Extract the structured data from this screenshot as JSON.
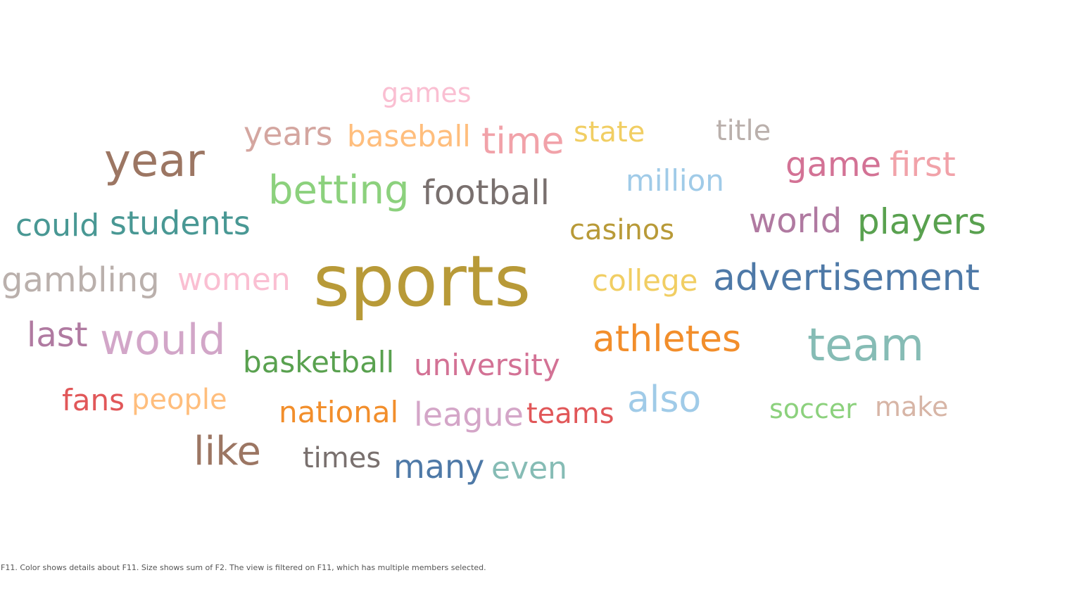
{
  "chart_data": {
    "type": "wordcloud",
    "words": [
      {
        "text": "sports",
        "color": "#b89a38"
      },
      {
        "text": "year",
        "color": "#9c7663"
      },
      {
        "text": "team",
        "color": "#86bcb5"
      },
      {
        "text": "advertisement",
        "color": "#4e79a7"
      },
      {
        "text": "would",
        "color": "#d2a6c8"
      },
      {
        "text": "betting",
        "color": "#8cd17d"
      },
      {
        "text": "athletes",
        "color": "#f28e2b"
      },
      {
        "text": "like",
        "color": "#9c7663"
      },
      {
        "text": "football",
        "color": "#79706e"
      },
      {
        "text": "players",
        "color": "#59a14f"
      },
      {
        "text": "gambling",
        "color": "#bab0ac"
      },
      {
        "text": "game",
        "color": "#d37295"
      },
      {
        "text": "first",
        "color": "#f1a2a9"
      },
      {
        "text": "world",
        "color": "#b07aa1"
      },
      {
        "text": "students",
        "color": "#499894"
      },
      {
        "text": "could",
        "color": "#499894"
      },
      {
        "text": "also",
        "color": "#a0cbe8"
      },
      {
        "text": "time",
        "color": "#f1a2a9"
      },
      {
        "text": "women",
        "color": "#fabfd2"
      },
      {
        "text": "college",
        "color": "#f1ce63"
      },
      {
        "text": "last",
        "color": "#b07aa1"
      },
      {
        "text": "years",
        "color": "#d4a6a0"
      },
      {
        "text": "basketball",
        "color": "#59a14f"
      },
      {
        "text": "university",
        "color": "#d37295"
      },
      {
        "text": "many",
        "color": "#4e79a7"
      },
      {
        "text": "national",
        "color": "#f28e2b"
      },
      {
        "text": "league",
        "color": "#d4a6c8"
      },
      {
        "text": "teams",
        "color": "#e15759"
      },
      {
        "text": "baseball",
        "color": "#ffbe7d"
      },
      {
        "text": "million",
        "color": "#a0cbe8"
      },
      {
        "text": "even",
        "color": "#86bcb5"
      },
      {
        "text": "state",
        "color": "#f1ce63"
      },
      {
        "text": "fans",
        "color": "#e15759"
      },
      {
        "text": "people",
        "color": "#ffbe7d"
      },
      {
        "text": "casinos",
        "color": "#b89a38"
      },
      {
        "text": "title",
        "color": "#bab0ac"
      },
      {
        "text": "times",
        "color": "#79706e"
      },
      {
        "text": "soccer",
        "color": "#8cd17d"
      },
      {
        "text": "make",
        "color": "#d7b5a6"
      },
      {
        "text": "games",
        "color": "#fabfd2"
      }
    ]
  },
  "caption": "F11.  Color shows details about F11.  Size shows sum of F2. The view is filtered on F11, which has multiple members selected."
}
